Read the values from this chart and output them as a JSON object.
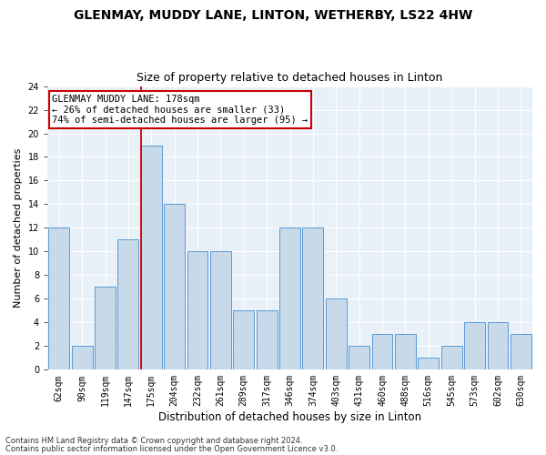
{
  "title": "GLENMAY, MUDDY LANE, LINTON, WETHERBY, LS22 4HW",
  "subtitle": "Size of property relative to detached houses in Linton",
  "xlabel": "Distribution of detached houses by size in Linton",
  "ylabel": "Number of detached properties",
  "categories": [
    "62sqm",
    "90sqm",
    "119sqm",
    "147sqm",
    "175sqm",
    "204sqm",
    "232sqm",
    "261sqm",
    "289sqm",
    "317sqm",
    "346sqm",
    "374sqm",
    "403sqm",
    "431sqm",
    "460sqm",
    "488sqm",
    "516sqm",
    "545sqm",
    "573sqm",
    "602sqm",
    "630sqm"
  ],
  "bar_values": [
    12,
    2,
    7,
    11,
    19,
    14,
    10,
    10,
    5,
    5,
    12,
    12,
    6,
    2,
    3,
    3,
    1,
    2,
    4,
    4,
    3
  ],
  "bar_color": "#c8d9ea",
  "bar_edge_color": "#5b9bd5",
  "vline_index": 4,
  "vline_color": "#cc0000",
  "annotation_title": "GLENMAY MUDDY LANE: 178sqm",
  "annotation_line1": "← 26% of detached houses are smaller (33)",
  "annotation_line2": "74% of semi-detached houses are larger (95) →",
  "annotation_box_color": "#cc0000",
  "ylim": [
    0,
    24
  ],
  "yticks": [
    0,
    2,
    4,
    6,
    8,
    10,
    12,
    14,
    16,
    18,
    20,
    22,
    24
  ],
  "footer1": "Contains HM Land Registry data © Crown copyright and database right 2024.",
  "footer2": "Contains public sector information licensed under the Open Government Licence v3.0.",
  "background_color": "#e8f0f8",
  "title_fontsize": 10,
  "subtitle_fontsize": 9,
  "tick_fontsize": 7,
  "ylabel_fontsize": 8,
  "xlabel_fontsize": 8.5,
  "footer_fontsize": 6,
  "annotation_fontsize": 7.5
}
